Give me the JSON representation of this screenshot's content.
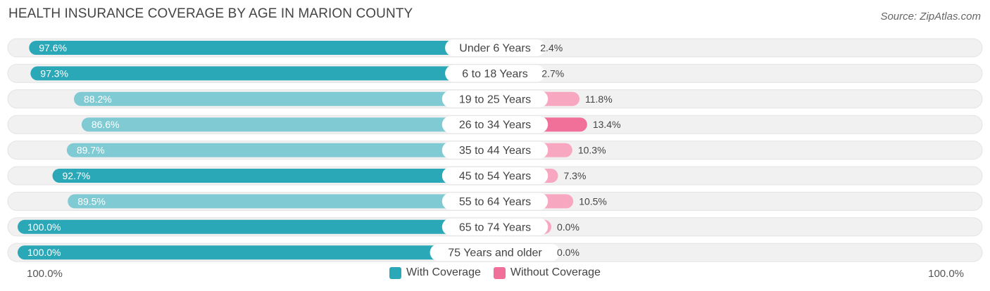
{
  "title": "HEALTH INSURANCE COVERAGE BY AGE IN MARION COUNTY",
  "source": "Source: ZipAtlas.com",
  "colors": {
    "with_strong": "#2aa8b8",
    "with_light": "#7fcad3",
    "without_strong": "#f07099",
    "without_light": "#f7a8c0",
    "row_bg": "#f1f1f1"
  },
  "chart_data": {
    "type": "bar",
    "orientation": "horizontal-diverging",
    "categories": [
      "Under 6 Years",
      "6 to 18 Years",
      "19 to 25 Years",
      "26 to 34 Years",
      "35 to 44 Years",
      "45 to 54 Years",
      "55 to 64 Years",
      "65 to 74 Years",
      "75 Years and older"
    ],
    "series": [
      {
        "name": "With Coverage",
        "values": [
          97.6,
          97.3,
          88.2,
          86.6,
          89.7,
          92.7,
          89.5,
          100.0,
          100.0
        ],
        "labels": [
          "97.6%",
          "97.3%",
          "88.2%",
          "86.6%",
          "89.7%",
          "92.7%",
          "89.5%",
          "100.0%",
          "100.0%"
        ]
      },
      {
        "name": "Without Coverage",
        "values": [
          2.4,
          2.7,
          11.8,
          13.4,
          10.3,
          7.3,
          10.5,
          0.0,
          0.0
        ],
        "labels": [
          "2.4%",
          "2.7%",
          "11.8%",
          "13.4%",
          "10.3%",
          "7.3%",
          "10.5%",
          "0.0%",
          "0.0%"
        ]
      }
    ],
    "axis": {
      "left_label": "100.0%",
      "right_label": "100.0%",
      "max": 100
    }
  }
}
